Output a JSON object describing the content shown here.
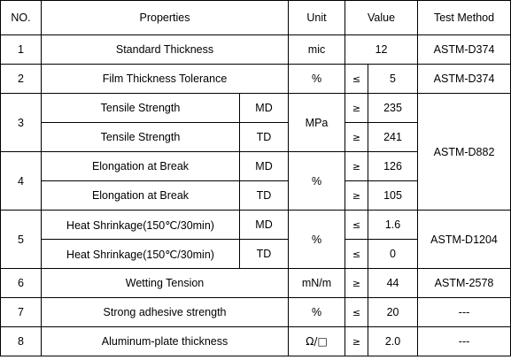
{
  "headers": {
    "no": "NO.",
    "properties": "Properties",
    "unit": "Unit",
    "value": "Value",
    "test_method": "Test Method"
  },
  "rows": [
    {
      "no": "1",
      "property": "Standard Thickness",
      "unit": "mic",
      "value": "12",
      "method": "ASTM-D374"
    },
    {
      "no": "2",
      "property": "Film Thickness Tolerance",
      "unit": "%",
      "op": "≤",
      "value": "5",
      "method": "ASTM-D374"
    },
    {
      "no": "3",
      "unit": "MPa",
      "method": "ASTM-D882",
      "sub": [
        {
          "property": "Tensile Strength",
          "dir": "MD",
          "op": "≥",
          "value": "235"
        },
        {
          "property": "Tensile Strength",
          "dir": "TD",
          "op": "≥",
          "value": "241"
        }
      ]
    },
    {
      "no": "4",
      "unit": "%",
      "sub": [
        {
          "property": "Elongation at Break",
          "dir": "MD",
          "op": "≥",
          "value": "126"
        },
        {
          "property": "Elongation at Break",
          "dir": "TD",
          "op": "≥",
          "value": "105"
        }
      ]
    },
    {
      "no": "5",
      "unit": "%",
      "method": "ASTM-D1204",
      "sub": [
        {
          "property": "Heat Shrinkage(150℃/30min)",
          "dir": "MD",
          "op": "≤",
          "value": "1.6"
        },
        {
          "property": "Heat Shrinkage(150℃/30min)",
          "dir": "TD",
          "op": "≤",
          "value": "0"
        }
      ]
    },
    {
      "no": "6",
      "property": "Wetting Tension",
      "unit": "mN/m",
      "op": "≥",
      "value": "44",
      "method": "ASTM-2578"
    },
    {
      "no": "7",
      "property": "Strong adhesive strength",
      "unit": "%",
      "op": "≤",
      "value": "20",
      "method": "---"
    },
    {
      "no": "8",
      "property": "Aluminum-plate thickness",
      "unit": "Ω/□",
      "op": "≥",
      "value": "2.0",
      "method": "---"
    }
  ]
}
